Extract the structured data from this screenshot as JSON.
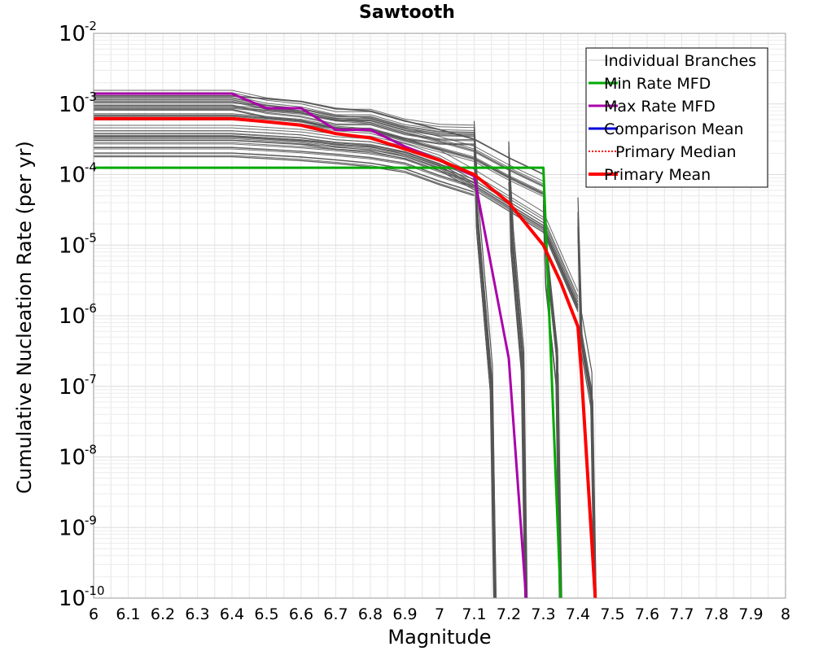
{
  "chart_data": {
    "type": "line",
    "title": "Sawtooth",
    "xlabel": "Magnitude",
    "ylabel": "Cumulative Nucleation Rate (per yr)",
    "xlim": [
      6,
      8
    ],
    "ylim_log10": [
      -10,
      -2
    ],
    "x_ticks": [
      "6",
      "6.1",
      "6.2",
      "6.3",
      "6.4",
      "6.5",
      "6.6",
      "6.7",
      "6.8",
      "6.9",
      "7",
      "7.1",
      "7.2",
      "7.3",
      "7.4",
      "7.5",
      "7.6",
      "7.7",
      "7.8",
      "7.9",
      "8"
    ],
    "y_tick_base": "10",
    "y_tick_exponents": [
      "-2",
      "-3",
      "-4",
      "-5",
      "-6",
      "-7",
      "-8",
      "-9",
      "-10"
    ],
    "y_scale": "log",
    "grid": true,
    "legend_position": "top-right",
    "legend": [
      {
        "label": "Individual Branches",
        "color": "#c8c8c8",
        "style": "solid",
        "width": 1
      },
      {
        "label": "Min Rate MFD",
        "color": "#00aa00",
        "style": "solid",
        "width": 3
      },
      {
        "label": "Max Rate MFD",
        "color": "#aa00aa",
        "style": "solid",
        "width": 3
      },
      {
        "label": "Comparison Mean",
        "color": "#0000dd",
        "style": "solid",
        "width": 3
      },
      {
        "label": "Primary Median",
        "color": "#ff0000",
        "style": "dotted",
        "width": 2
      },
      {
        "label": "Primary Mean",
        "color": "#ff0000",
        "style": "solid",
        "width": 4
      }
    ],
    "branch_color": "#555555",
    "branch_envelopes": [
      {
        "name": "branches-upper",
        "x": [
          6.0,
          6.4,
          6.5,
          6.6,
          6.7,
          6.8,
          6.9,
          7.0,
          7.1
        ],
        "y": [
          0.00115,
          0.00115,
          0.0009,
          0.0008,
          0.00062,
          0.00062,
          0.00045,
          0.00038,
          0.00037
        ]
      },
      {
        "name": "branches-mid-upper",
        "x": [
          6.0,
          6.4,
          6.6,
          6.7,
          6.8,
          6.9,
          7.0,
          7.1,
          7.2,
          7.3
        ],
        "y": [
          0.0009,
          0.0009,
          0.00075,
          0.0006,
          0.00055,
          0.0004,
          0.0003,
          0.00022,
          0.00012,
          7e-05
        ]
      },
      {
        "name": "branches-mid-lower",
        "x": [
          6.0,
          6.4,
          6.6,
          6.7,
          6.8,
          6.9,
          7.0,
          7.1,
          7.2,
          7.3,
          7.4
        ],
        "y": [
          0.0004,
          0.0004,
          0.00035,
          0.0003,
          0.00028,
          0.00022,
          0.00015,
          8e-05,
          4e-05,
          2e-05,
          1.5e-06
        ]
      },
      {
        "name": "branches-lower",
        "x": [
          6.0,
          6.4,
          6.6,
          6.7,
          6.8,
          6.9,
          7.0,
          7.1
        ],
        "y": [
          0.00025,
          0.00025,
          0.00022,
          0.0002,
          0.00018,
          0.00015,
          0.0001,
          7e-05
        ]
      }
    ],
    "branch_drops": [
      {
        "x": [
          7.1,
          7.11,
          7.15,
          7.16
        ],
        "y": [
          0.0003,
          2e-05,
          1e-07,
          1e-10
        ]
      },
      {
        "x": [
          7.2,
          7.21,
          7.24,
          7.25
        ],
        "y": [
          0.00015,
          1e-05,
          2e-07,
          1e-10
        ]
      },
      {
        "x": [
          7.3,
          7.31,
          7.34,
          7.35
        ],
        "y": [
          7e-05,
          5e-06,
          2e-07,
          1e-10
        ]
      },
      {
        "x": [
          7.4,
          7.41,
          7.44,
          7.45
        ],
        "y": [
          3e-05,
          7e-07,
          1e-07,
          1e-10
        ]
      }
    ],
    "series": [
      {
        "name": "Min Rate MFD",
        "color": "#00aa00",
        "width": 3,
        "x": [
          6.0,
          7.3,
          7.35
        ],
        "y": [
          0.000125,
          0.000125,
          1e-10
        ]
      },
      {
        "name": "Max Rate MFD",
        "color": "#aa00aa",
        "width": 3,
        "x": [
          6.0,
          6.4,
          6.5,
          6.6,
          6.7,
          6.8,
          6.9,
          7.0,
          7.1,
          7.2,
          7.25
        ],
        "y": [
          0.0014,
          0.0014,
          0.00087,
          0.00087,
          0.00043,
          0.00043,
          0.00025,
          0.00016,
          9.5e-05,
          2.5e-07,
          1e-10
        ]
      },
      {
        "name": "Primary Mean",
        "color": "#ff0000",
        "width": 4,
        "x": [
          6.0,
          6.4,
          6.5,
          6.6,
          6.7,
          6.8,
          6.9,
          7.0,
          7.1,
          7.2,
          7.3,
          7.35,
          7.4,
          7.41,
          7.45
        ],
        "y": [
          0.00062,
          0.00062,
          0.00056,
          0.0005,
          0.00038,
          0.00033,
          0.00023,
          0.00016,
          0.0001,
          4e-05,
          1e-05,
          3e-06,
          7e-07,
          1.5e-07,
          1e-10
        ]
      }
    ]
  }
}
